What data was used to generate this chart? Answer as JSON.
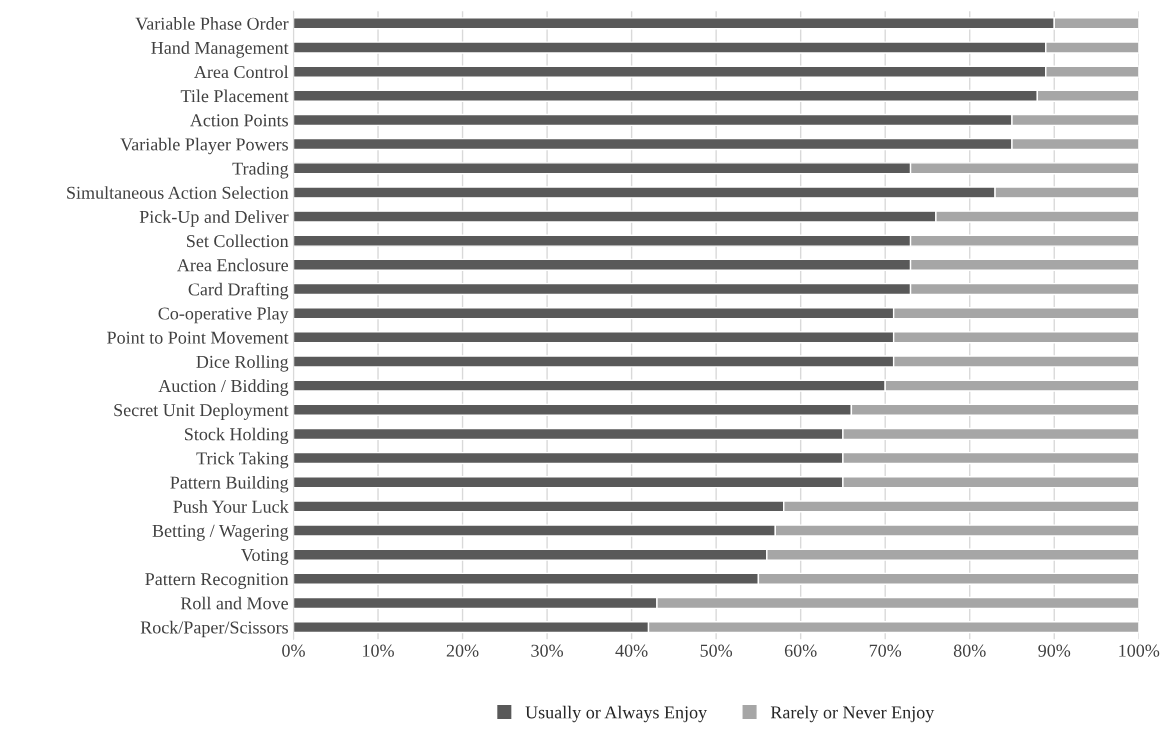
{
  "chart_data": {
    "type": "bar",
    "orientation": "horizontal",
    "stacked": true,
    "categories": [
      "Variable Phase Order",
      "Hand Management",
      "Area Control",
      "Tile Placement",
      "Action Points",
      "Variable Player Powers",
      "Trading",
      "Simultaneous Action Selection",
      "Pick-Up and Deliver",
      "Set Collection",
      "Area Enclosure",
      "Card Drafting",
      "Co-operative Play",
      "Point to Point Movement",
      "Dice Rolling",
      "Auction / Bidding",
      "Secret Unit Deployment",
      "Stock Holding",
      "Trick Taking",
      "Pattern Building",
      "Push Your Luck",
      "Betting / Wagering",
      "Voting",
      "Pattern Recognition",
      "Roll and Move",
      "Rock/Paper/Scissors"
    ],
    "series": [
      {
        "name": "Usually or Always Enjoy",
        "color": "#595959",
        "values": [
          90,
          89,
          89,
          88,
          85,
          85,
          73,
          83,
          76,
          73,
          73,
          73,
          71,
          71,
          71,
          70,
          66,
          65,
          65,
          65,
          58,
          57,
          56,
          55,
          43,
          42
        ]
      },
      {
        "name": "Rarely or Never Enjoy",
        "color": "#a6a6a6",
        "values": [
          10,
          11,
          11,
          12,
          15,
          15,
          27,
          17,
          24,
          27,
          27,
          27,
          29,
          29,
          29,
          30,
          34,
          35,
          35,
          35,
          42,
          43,
          44,
          45,
          57,
          58
        ]
      }
    ],
    "xlim": [
      0,
      100
    ],
    "xticks": [
      {
        "value": 0,
        "label": "0%"
      },
      {
        "value": 10,
        "label": "10%"
      },
      {
        "value": 20,
        "label": "20%"
      },
      {
        "value": 30,
        "label": "30%"
      },
      {
        "value": 40,
        "label": "40%"
      },
      {
        "value": 50,
        "label": "50%"
      },
      {
        "value": 60,
        "label": "60%"
      },
      {
        "value": 70,
        "label": "70%"
      },
      {
        "value": 80,
        "label": "80%"
      },
      {
        "value": 90,
        "label": "90%"
      },
      {
        "value": 100,
        "label": "100%"
      }
    ],
    "grid": "x",
    "legend": "bottom"
  }
}
